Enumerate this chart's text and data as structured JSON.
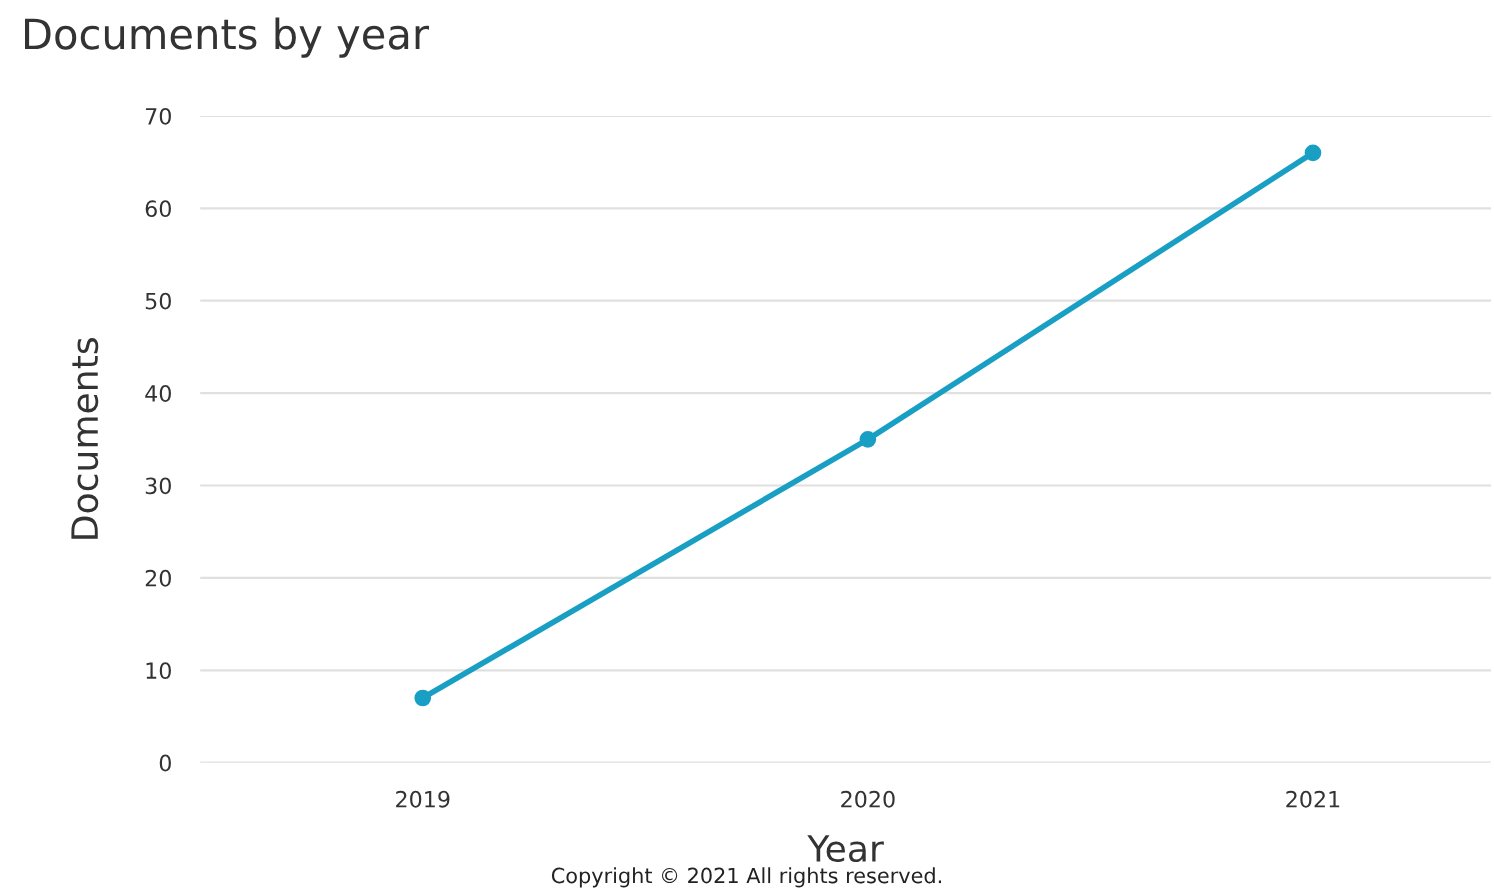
{
  "chart_data": {
    "type": "line",
    "title": "Documents by year",
    "xlabel": "Year",
    "ylabel": "Documents",
    "categories": [
      "2019",
      "2020",
      "2021"
    ],
    "series": [
      {
        "color": "#1a9fc4",
        "values": [
          7,
          35,
          66
        ]
      }
    ],
    "ylim": [
      0,
      70
    ],
    "yticks": [
      0,
      10,
      20,
      30,
      40,
      50,
      60,
      70
    ],
    "grid": "y",
    "marker": "circle",
    "line_style": "solid",
    "annotations": [
      "Copyright © 2021 All rights reserved."
    ]
  }
}
